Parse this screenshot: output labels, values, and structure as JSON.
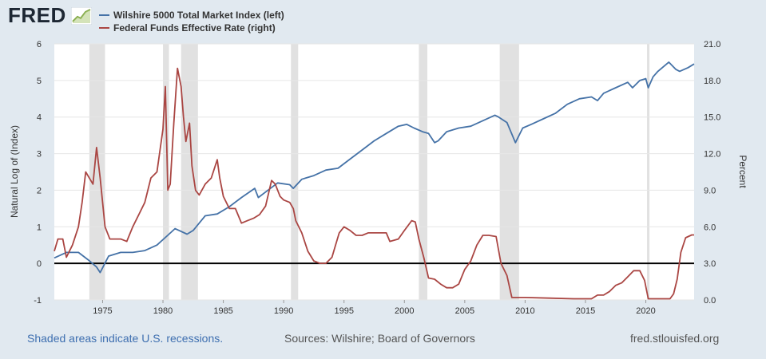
{
  "header": {
    "logo_text": "FRED",
    "logo_icon": "chart-trend-icon",
    "legend": [
      {
        "label": "Wilshire 5000 Total Market Index (left)",
        "color": "#4572a7"
      },
      {
        "label": "Federal Funds Effective Rate (right)",
        "color": "#aa4643"
      }
    ]
  },
  "footer": {
    "note": "Shaded areas indicate U.S. recessions.",
    "sources": "Sources: Wilshire; Board of Governors",
    "site": "fred.stlouisfed.org"
  },
  "chart_data": {
    "type": "line",
    "title": "",
    "xlabel": "",
    "ylabel": "Natural Log of (Index)",
    "ylabel_right": "Percent",
    "xlim": [
      1971.0,
      2024.0
    ],
    "ylim": [
      -1,
      6
    ],
    "ylim_right": [
      0.0,
      21.0
    ],
    "x_ticks": [
      "1975",
      "1980",
      "1985",
      "1990",
      "1995",
      "2000",
      "2005",
      "2010",
      "2015",
      "2020"
    ],
    "y_ticks": [
      "-1",
      "0",
      "1",
      "2",
      "3",
      "4",
      "5",
      "6"
    ],
    "y_ticks_right": [
      "0.0",
      "3.0",
      "6.0",
      "9.0",
      "12.0",
      "15.0",
      "18.0",
      "21.0"
    ],
    "grid": true,
    "zero_line": 0,
    "recessions": [
      [
        1973.9,
        1975.2
      ],
      [
        1980.0,
        1980.5
      ],
      [
        1981.5,
        1982.9
      ],
      [
        1990.6,
        1991.2
      ],
      [
        2001.2,
        2001.9
      ],
      [
        2007.9,
        2009.5
      ],
      [
        2020.1,
        2020.3
      ]
    ],
    "series": [
      {
        "name": "Wilshire 5000 Total Market Index (left)",
        "axis": "left",
        "color": "#4572a7",
        "x": [
          1971.0,
          1972.0,
          1973.0,
          1973.8,
          1974.5,
          1974.8,
          1975.5,
          1976.5,
          1977.5,
          1978.5,
          1979.5,
          1980.5,
          1981.0,
          1982.0,
          1982.5,
          1983.5,
          1984.5,
          1985.5,
          1986.5,
          1987.6,
          1987.9,
          1988.5,
          1989.5,
          1990.5,
          1990.8,
          1991.5,
          1992.5,
          1993.5,
          1994.5,
          1995.5,
          1996.5,
          1997.5,
          1998.5,
          1999.5,
          2000.2,
          2000.8,
          2001.5,
          2002.0,
          2002.5,
          2002.8,
          2003.5,
          2004.5,
          2005.5,
          2006.5,
          2007.5,
          2007.8,
          2008.5,
          2009.2,
          2009.8,
          2010.5,
          2011.5,
          2012.5,
          2013.5,
          2014.5,
          2015.5,
          2016.0,
          2016.5,
          2017.5,
          2018.5,
          2018.9,
          2019.5,
          2020.0,
          2020.2,
          2020.6,
          2021.0,
          2021.9,
          2022.5,
          2022.8,
          2023.5,
          2024.0
        ],
        "values": [
          0.15,
          0.3,
          0.3,
          0.1,
          -0.1,
          -0.25,
          0.2,
          0.3,
          0.3,
          0.35,
          0.5,
          0.8,
          0.95,
          0.8,
          0.9,
          1.3,
          1.35,
          1.55,
          1.8,
          2.05,
          1.8,
          1.95,
          2.2,
          2.15,
          2.05,
          2.3,
          2.4,
          2.55,
          2.6,
          2.85,
          3.1,
          3.35,
          3.55,
          3.75,
          3.8,
          3.7,
          3.6,
          3.55,
          3.3,
          3.35,
          3.6,
          3.7,
          3.75,
          3.9,
          4.05,
          4.0,
          3.85,
          3.3,
          3.7,
          3.8,
          3.95,
          4.1,
          4.35,
          4.5,
          4.55,
          4.45,
          4.65,
          4.8,
          4.95,
          4.8,
          5.0,
          5.05,
          4.8,
          5.1,
          5.25,
          5.5,
          5.3,
          5.25,
          5.35,
          5.45
        ]
      },
      {
        "name": "Federal Funds Effective Rate (right)",
        "axis": "right",
        "color": "#aa4643",
        "x": [
          1971.0,
          1971.3,
          1971.7,
          1972.0,
          1972.5,
          1973.0,
          1973.3,
          1973.6,
          1973.9,
          1974.2,
          1974.5,
          1974.8,
          1975.2,
          1975.6,
          1976.0,
          1976.5,
          1977.0,
          1977.5,
          1978.0,
          1978.5,
          1979.0,
          1979.5,
          1980.0,
          1980.2,
          1980.4,
          1980.6,
          1980.9,
          1981.2,
          1981.5,
          1981.7,
          1981.9,
          1982.2,
          1982.4,
          1982.7,
          1983.0,
          1983.5,
          1984.0,
          1984.5,
          1984.7,
          1985.0,
          1985.5,
          1986.0,
          1986.5,
          1987.0,
          1987.5,
          1988.0,
          1988.5,
          1989.0,
          1989.3,
          1989.7,
          1990.0,
          1990.5,
          1990.8,
          1991.0,
          1991.5,
          1992.0,
          1992.5,
          1993.0,
          1993.5,
          1994.0,
          1994.3,
          1994.6,
          1995.0,
          1995.5,
          1996.0,
          1996.5,
          1997.0,
          1997.5,
          1998.0,
          1998.5,
          1998.8,
          1999.5,
          2000.0,
          2000.6,
          2000.9,
          2001.2,
          2001.6,
          2002.0,
          2002.5,
          2003.0,
          2003.5,
          2004.0,
          2004.5,
          2005.0,
          2005.5,
          2006.0,
          2006.5,
          2007.0,
          2007.6,
          2008.0,
          2008.5,
          2008.9,
          2009.5,
          2010.0,
          2012.0,
          2014.0,
          2015.5,
          2016.0,
          2016.5,
          2017.0,
          2017.5,
          2018.0,
          2018.5,
          2019.0,
          2019.5,
          2019.9,
          2020.2,
          2021.0,
          2022.0,
          2022.3,
          2022.6,
          2022.9,
          2023.3,
          2023.8,
          2024.0
        ],
        "values": [
          4.0,
          5.0,
          5.0,
          3.5,
          4.5,
          6.0,
          8.0,
          10.5,
          10.0,
          9.5,
          12.5,
          10.0,
          6.0,
          5.0,
          5.0,
          5.0,
          4.8,
          6.0,
          7.0,
          8.0,
          10.0,
          10.5,
          14.0,
          17.5,
          9.0,
          9.5,
          14.5,
          19.0,
          17.5,
          15.0,
          13.0,
          14.5,
          11.0,
          9.0,
          8.6,
          9.5,
          10.0,
          11.5,
          10.0,
          8.5,
          7.5,
          7.5,
          6.3,
          6.5,
          6.7,
          7.0,
          7.7,
          9.8,
          9.5,
          8.5,
          8.2,
          8.0,
          7.5,
          6.5,
          5.5,
          4.0,
          3.2,
          3.0,
          3.0,
          3.5,
          4.5,
          5.5,
          6.0,
          5.7,
          5.3,
          5.3,
          5.5,
          5.5,
          5.5,
          5.5,
          4.8,
          5.0,
          5.7,
          6.5,
          6.4,
          5.0,
          3.5,
          1.8,
          1.7,
          1.3,
          1.0,
          1.0,
          1.3,
          2.5,
          3.2,
          4.5,
          5.3,
          5.3,
          5.2,
          3.0,
          2.0,
          0.2,
          0.2,
          0.2,
          0.15,
          0.1,
          0.1,
          0.4,
          0.4,
          0.7,
          1.2,
          1.4,
          1.9,
          2.4,
          2.4,
          1.6,
          0.1,
          0.1,
          0.1,
          0.5,
          1.7,
          3.9,
          5.1,
          5.33,
          5.33
        ]
      }
    ]
  }
}
